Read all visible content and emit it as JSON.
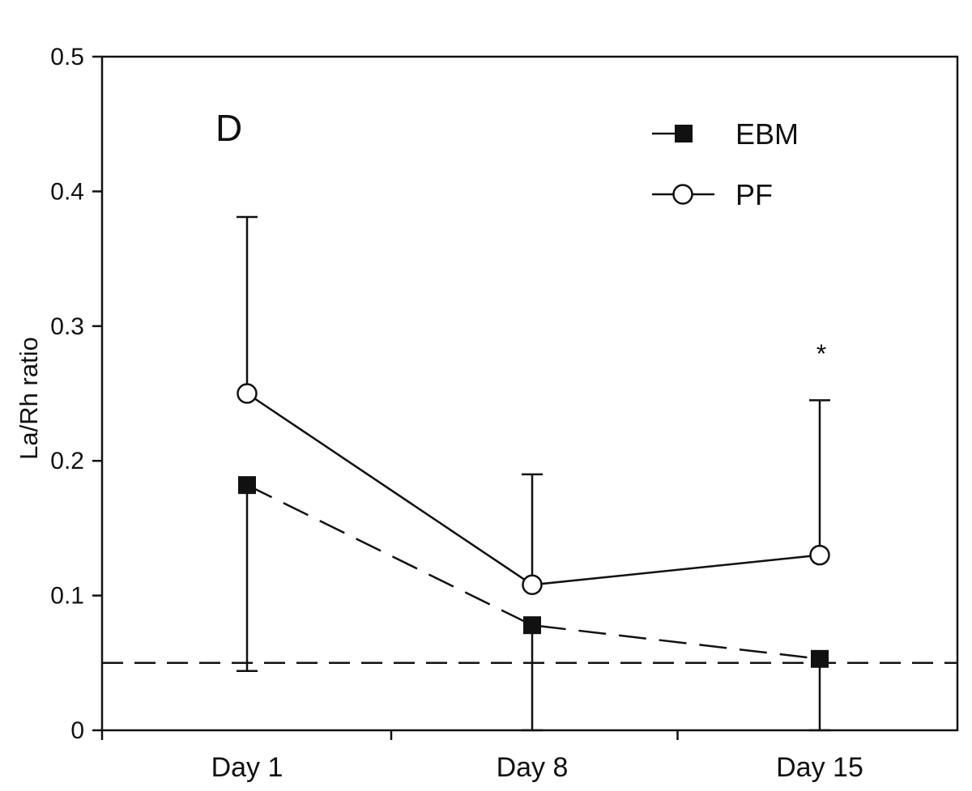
{
  "chart_data": {
    "type": "line",
    "panel_label": "D",
    "ylabel": "La/Rh ratio",
    "xlabel": "",
    "ylim": [
      0,
      0.5
    ],
    "yticks": [
      {
        "value": 0,
        "label": "0"
      },
      {
        "value": 0.1,
        "label": "0.1"
      },
      {
        "value": 0.2,
        "label": "0.2"
      },
      {
        "value": 0.3,
        "label": "0.3"
      },
      {
        "value": 0.4,
        "label": "0.4"
      },
      {
        "value": 0.5,
        "label": "0.5"
      }
    ],
    "categories": [
      "Day 1",
      "Day 8",
      "Day 15"
    ],
    "series": [
      {
        "name": "EBM",
        "marker": "filled-square",
        "line_style": "dashed",
        "values": [
          0.182,
          0.078,
          0.053
        ],
        "error_low": [
          0.044,
          0,
          0
        ],
        "error_high": [
          0.182,
          0.078,
          0.053
        ]
      },
      {
        "name": "PF",
        "marker": "open-circle",
        "line_style": "solid",
        "values": [
          0.25,
          0.108,
          0.13
        ],
        "error_low": [
          0.25,
          0.108,
          0.13
        ],
        "error_high": [
          0.381,
          0.19,
          0.245
        ]
      }
    ],
    "reference_line": {
      "y": 0.05,
      "style": "dashed"
    },
    "annotations": [
      {
        "text": "*",
        "category": "Day 15",
        "y": 0.285
      }
    ],
    "legend_position": "top-right",
    "grid": false,
    "colors": {
      "ink": "#111111",
      "background": "#ffffff"
    }
  }
}
